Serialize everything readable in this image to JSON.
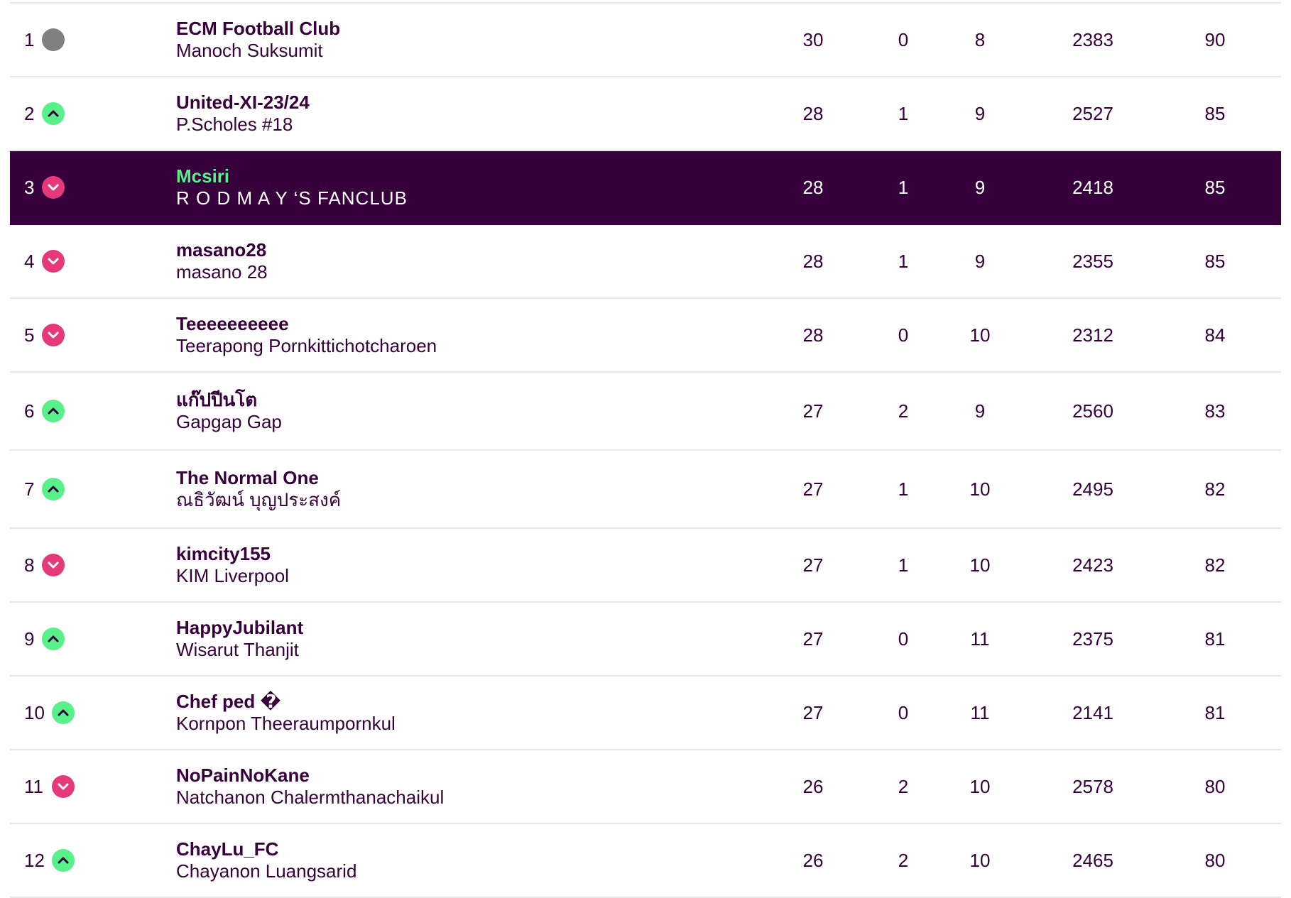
{
  "standings": {
    "rows": [
      {
        "rank": "1",
        "movement": "same",
        "team": "ECM Football Club",
        "manager": "Manoch Suksumit",
        "w": "30",
        "d": "0",
        "l": "8",
        "for": "2383",
        "pts": "90",
        "highlight": false
      },
      {
        "rank": "2",
        "movement": "up",
        "team": "United-XI-23/24",
        "manager": "P.Scholes #18",
        "w": "28",
        "d": "1",
        "l": "9",
        "for": "2527",
        "pts": "85",
        "highlight": false
      },
      {
        "rank": "3",
        "movement": "down",
        "team": "Mcsiri",
        "manager": "R O D M A Y ‘S FANCLUB",
        "w": "28",
        "d": "1",
        "l": "9",
        "for": "2418",
        "pts": "85",
        "highlight": true
      },
      {
        "rank": "4",
        "movement": "down",
        "team": "masano28",
        "manager": "masano 28",
        "w": "28",
        "d": "1",
        "l": "9",
        "for": "2355",
        "pts": "85",
        "highlight": false
      },
      {
        "rank": "5",
        "movement": "down",
        "team": "Teeeeeeeeee",
        "manager": "Teerapong Pornkittichotcharoen",
        "w": "28",
        "d": "0",
        "l": "10",
        "for": "2312",
        "pts": "84",
        "highlight": false
      },
      {
        "rank": "6",
        "movement": "up",
        "team": "แก๊ปปีนโต",
        "manager": "Gapgap Gap",
        "w": "27",
        "d": "2",
        "l": "9",
        "for": "2560",
        "pts": "83",
        "highlight": false
      },
      {
        "rank": "7",
        "movement": "up",
        "team": "The Normal One",
        "manager": "ณธิวัฒน์ บุญประสงค์",
        "w": "27",
        "d": "1",
        "l": "10",
        "for": "2495",
        "pts": "82",
        "highlight": false
      },
      {
        "rank": "8",
        "movement": "down",
        "team": "kimcity155",
        "manager": "KIM Liverpool",
        "w": "27",
        "d": "1",
        "l": "10",
        "for": "2423",
        "pts": "82",
        "highlight": false
      },
      {
        "rank": "9",
        "movement": "up",
        "team": "HappyJubilant",
        "manager": "Wisarut Thanjit",
        "w": "27",
        "d": "0",
        "l": "11",
        "for": "2375",
        "pts": "81",
        "highlight": false
      },
      {
        "rank": "10",
        "movement": "up",
        "team": "Chef ped �",
        "manager": "Kornpon Theeraumpornkul",
        "w": "27",
        "d": "0",
        "l": "11",
        "for": "2141",
        "pts": "81",
        "highlight": false
      },
      {
        "rank": "11",
        "movement": "down",
        "team": "NoPainNoKane",
        "manager": "Natchanon Chalermthanachaikul",
        "w": "26",
        "d": "2",
        "l": "10",
        "for": "2578",
        "pts": "80",
        "highlight": false
      },
      {
        "rank": "12",
        "movement": "up",
        "team": "ChayLu_FC",
        "manager": "Chayanon Luangsarid",
        "w": "26",
        "d": "2",
        "l": "10",
        "for": "2465",
        "pts": "80",
        "highlight": false
      }
    ]
  },
  "colors": {
    "text": "#37003c",
    "highlight_bg": "#37003c",
    "highlight_team": "#57f089",
    "up": "#57f089",
    "down": "#e6397a",
    "same": "#808080"
  },
  "icons": {
    "up": "chevron-up-icon",
    "down": "chevron-down-icon",
    "same": "no-change-icon"
  }
}
